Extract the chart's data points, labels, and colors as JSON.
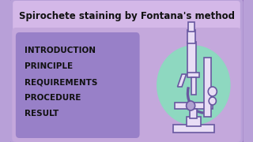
{
  "bg_color": "#b8a0d8",
  "title_bg": "#d4b8e8",
  "title_text": "Spirochete staining by Fontana's method",
  "title_color": "#111111",
  "content_bg": "#c4a8dc",
  "list_box_bg": "#9880c8",
  "list_items": [
    "INTRODUCTION",
    "PRINCIPLE",
    "REQUIREMENTS",
    "PROCEDURE",
    "RESULT"
  ],
  "list_color": "#111111",
  "outer_border": "#9878c0",
  "microscope_circle": "#8ed8c0",
  "microscope_fill": "#e8ddf5",
  "microscope_stroke": "#6858a0",
  "microscope_dark": "#b0a0d0"
}
